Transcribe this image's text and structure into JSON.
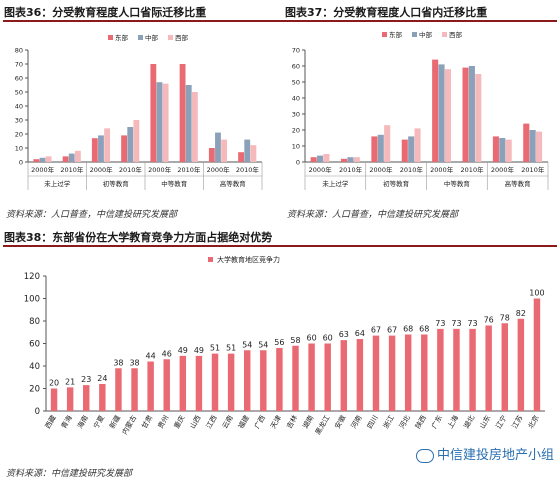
{
  "figures": {
    "fig36_title": "图表36：分受教育程度人口省际迁移比重",
    "fig37_title": "图表37：分受教育程度人口省内迁移比重",
    "fig38_title": "图表38：东部省份在大学教育竞争力方面占据绝对优势",
    "source_top_left": "资料来源：人口普查，中信建投研究发展部",
    "source_top_right": "资料来源：人口普查，中信建投研究发展部",
    "source_bottom": "资料来源：中信建投研究发展部"
  },
  "watermark": {
    "text": "中信建投房地产小组",
    "icon": "wechat-icon"
  },
  "colors": {
    "east": "#e96a72",
    "central": "#8aa1b9",
    "west": "#f5b8bb",
    "bar": "#e96a72",
    "title_rule": "#8b1a1a"
  },
  "chart_data": [
    {
      "type": "bar",
      "legend_placement": "top",
      "categories": [
        "2000年",
        "2010年",
        "2000年",
        "2010年",
        "2000年",
        "2010年",
        "2000年",
        "2010年"
      ],
      "groups": [
        "未上过学",
        "初等教育",
        "中等教育",
        "高等教育"
      ],
      "series": [
        {
          "name": "东部",
          "values": [
            2,
            4,
            17,
            19,
            70,
            70,
            10,
            7
          ]
        },
        {
          "name": "中部",
          "values": [
            3,
            6,
            19,
            25,
            57,
            55,
            21,
            16
          ]
        },
        {
          "name": "西部",
          "values": [
            4,
            8,
            24,
            30,
            56,
            50,
            16,
            12
          ]
        }
      ],
      "ylim": [
        0,
        80
      ],
      "yticks": [
        0,
        10,
        20,
        30,
        40,
        50,
        60,
        70,
        80
      ],
      "grid": false
    },
    {
      "type": "bar",
      "legend_placement": "top",
      "categories": [
        "2000年",
        "2010年",
        "2000年",
        "2010年",
        "2000年",
        "2010年",
        "2000年",
        "2010年"
      ],
      "groups": [
        "未上过学",
        "初等教育",
        "中等教育",
        "高等教育"
      ],
      "series": [
        {
          "name": "东部",
          "values": [
            3,
            2,
            16,
            14,
            64,
            59,
            16,
            24
          ]
        },
        {
          "name": "中部",
          "values": [
            4,
            3,
            17,
            16,
            61,
            60,
            15,
            20
          ]
        },
        {
          "name": "西部",
          "values": [
            5,
            3,
            23,
            21,
            58,
            55,
            14,
            19
          ]
        }
      ],
      "ylim": [
        0,
        70
      ],
      "yticks": [
        0,
        10,
        20,
        30,
        40,
        50,
        60,
        70
      ],
      "grid": false
    },
    {
      "type": "bar",
      "legend_placement": "top",
      "series": [
        {
          "name": "大学教育地区竞争力"
        }
      ],
      "categories": [
        "西藏",
        "青海",
        "海南",
        "宁夏",
        "新疆",
        "内蒙古",
        "甘肃",
        "贵州",
        "重庆",
        "山西",
        "江西",
        "云南",
        "福建",
        "广西",
        "天津",
        "吉林",
        "湖南",
        "黑龙江",
        "安徽",
        "河南",
        "四川",
        "浙江",
        "河北",
        "陕西",
        "广东",
        "上海",
        "湖北",
        "山东",
        "辽宁",
        "江苏",
        "北京"
      ],
      "values": [
        20,
        21,
        23,
        24,
        38,
        38,
        44,
        46,
        49,
        49,
        51,
        51,
        54,
        54,
        56,
        58,
        60,
        60,
        63,
        64,
        67,
        67,
        68,
        68,
        73,
        73,
        73,
        76,
        78,
        82,
        100
      ],
      "ylim": [
        0,
        120
      ],
      "yticks": [
        0,
        20,
        40,
        60,
        80,
        100,
        120
      ],
      "grid": false,
      "data_labels": true
    }
  ]
}
